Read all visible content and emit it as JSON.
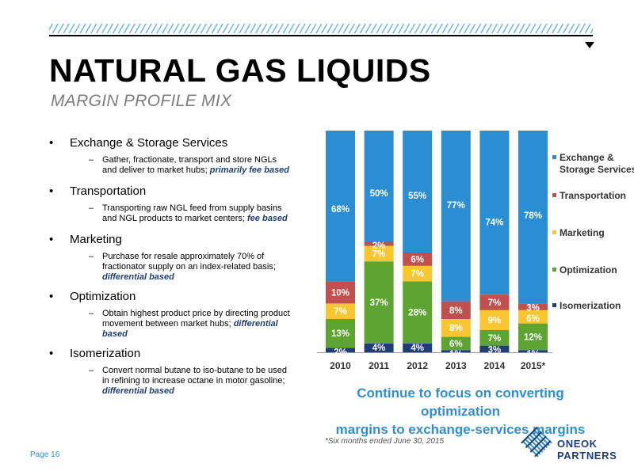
{
  "title": "NATURAL GAS LIQUIDS",
  "subtitle": "MARGIN PROFILE MIX",
  "bullets": [
    {
      "head": "Exchange & Storage Services",
      "sub_lines": [
        "Gather, fractionate, transport and store NGLs",
        "and deliver to market hubs; "
      ],
      "sub_emph": "primarily fee based"
    },
    {
      "head": "Transportation",
      "sub_lines": [
        "Transporting raw NGL feed from supply basins",
        "and NGL products to market centers; "
      ],
      "sub_emph": "fee based"
    },
    {
      "head": "Marketing",
      "sub_lines": [
        "Purchase for resale approximately 70% of",
        "fractionator supply on an index-related basis;"
      ],
      "sub_emph": "differential based"
    },
    {
      "head": "Optimization",
      "sub_lines": [
        "Obtain highest product price by directing product",
        "movement between market hubs; "
      ],
      "sub_emph": "differential based"
    },
    {
      "head": "Isomerization",
      "sub_lines": [
        "Convert normal butane to iso-butane to be used",
        "in refining to increase octane in motor gasoline;"
      ],
      "sub_emph": "differential based"
    }
  ],
  "bullet_glyph": "•",
  "dash_glyph": "–",
  "chart_data": {
    "type": "bar",
    "stacked": true,
    "categories": [
      "2010",
      "2011",
      "2012",
      "2013",
      "2014",
      "2015*"
    ],
    "series": [
      {
        "name": "Isomerization",
        "color": "#1f3f74",
        "values": [
          2,
          4,
          4,
          1,
          3,
          1
        ]
      },
      {
        "name": "Optimization",
        "color": "#5ea431",
        "values": [
          13,
          37,
          28,
          6,
          7,
          12
        ]
      },
      {
        "name": "Marketing",
        "color": "#f8c630",
        "values": [
          7,
          7,
          7,
          8,
          9,
          6
        ]
      },
      {
        "name": "Transportation",
        "color": "#c0504d",
        "values": [
          10,
          2,
          6,
          8,
          7,
          3
        ]
      },
      {
        "name": "Exchange & Storage Services",
        "color": "#2b8ed4",
        "values": [
          68,
          50,
          55,
          77,
          74,
          78
        ]
      }
    ],
    "legend_labels": [
      "Exchange &",
      "Storage Services",
      "Transportation",
      "Marketing",
      "Optimization",
      "Isomerization"
    ],
    "legend_position": "right",
    "ylim": [
      0,
      100
    ],
    "grid": false
  },
  "note_lines": [
    "Continue to focus on converting optimization",
    "margins to exchange-services margins"
  ],
  "footnote": "*Six months ended June 30, 2015",
  "page_label": "Page 16",
  "logo": {
    "line1": "ONEOK",
    "line2": "PARTNERS",
    "icon": "oneok-diamond-logo-icon"
  }
}
